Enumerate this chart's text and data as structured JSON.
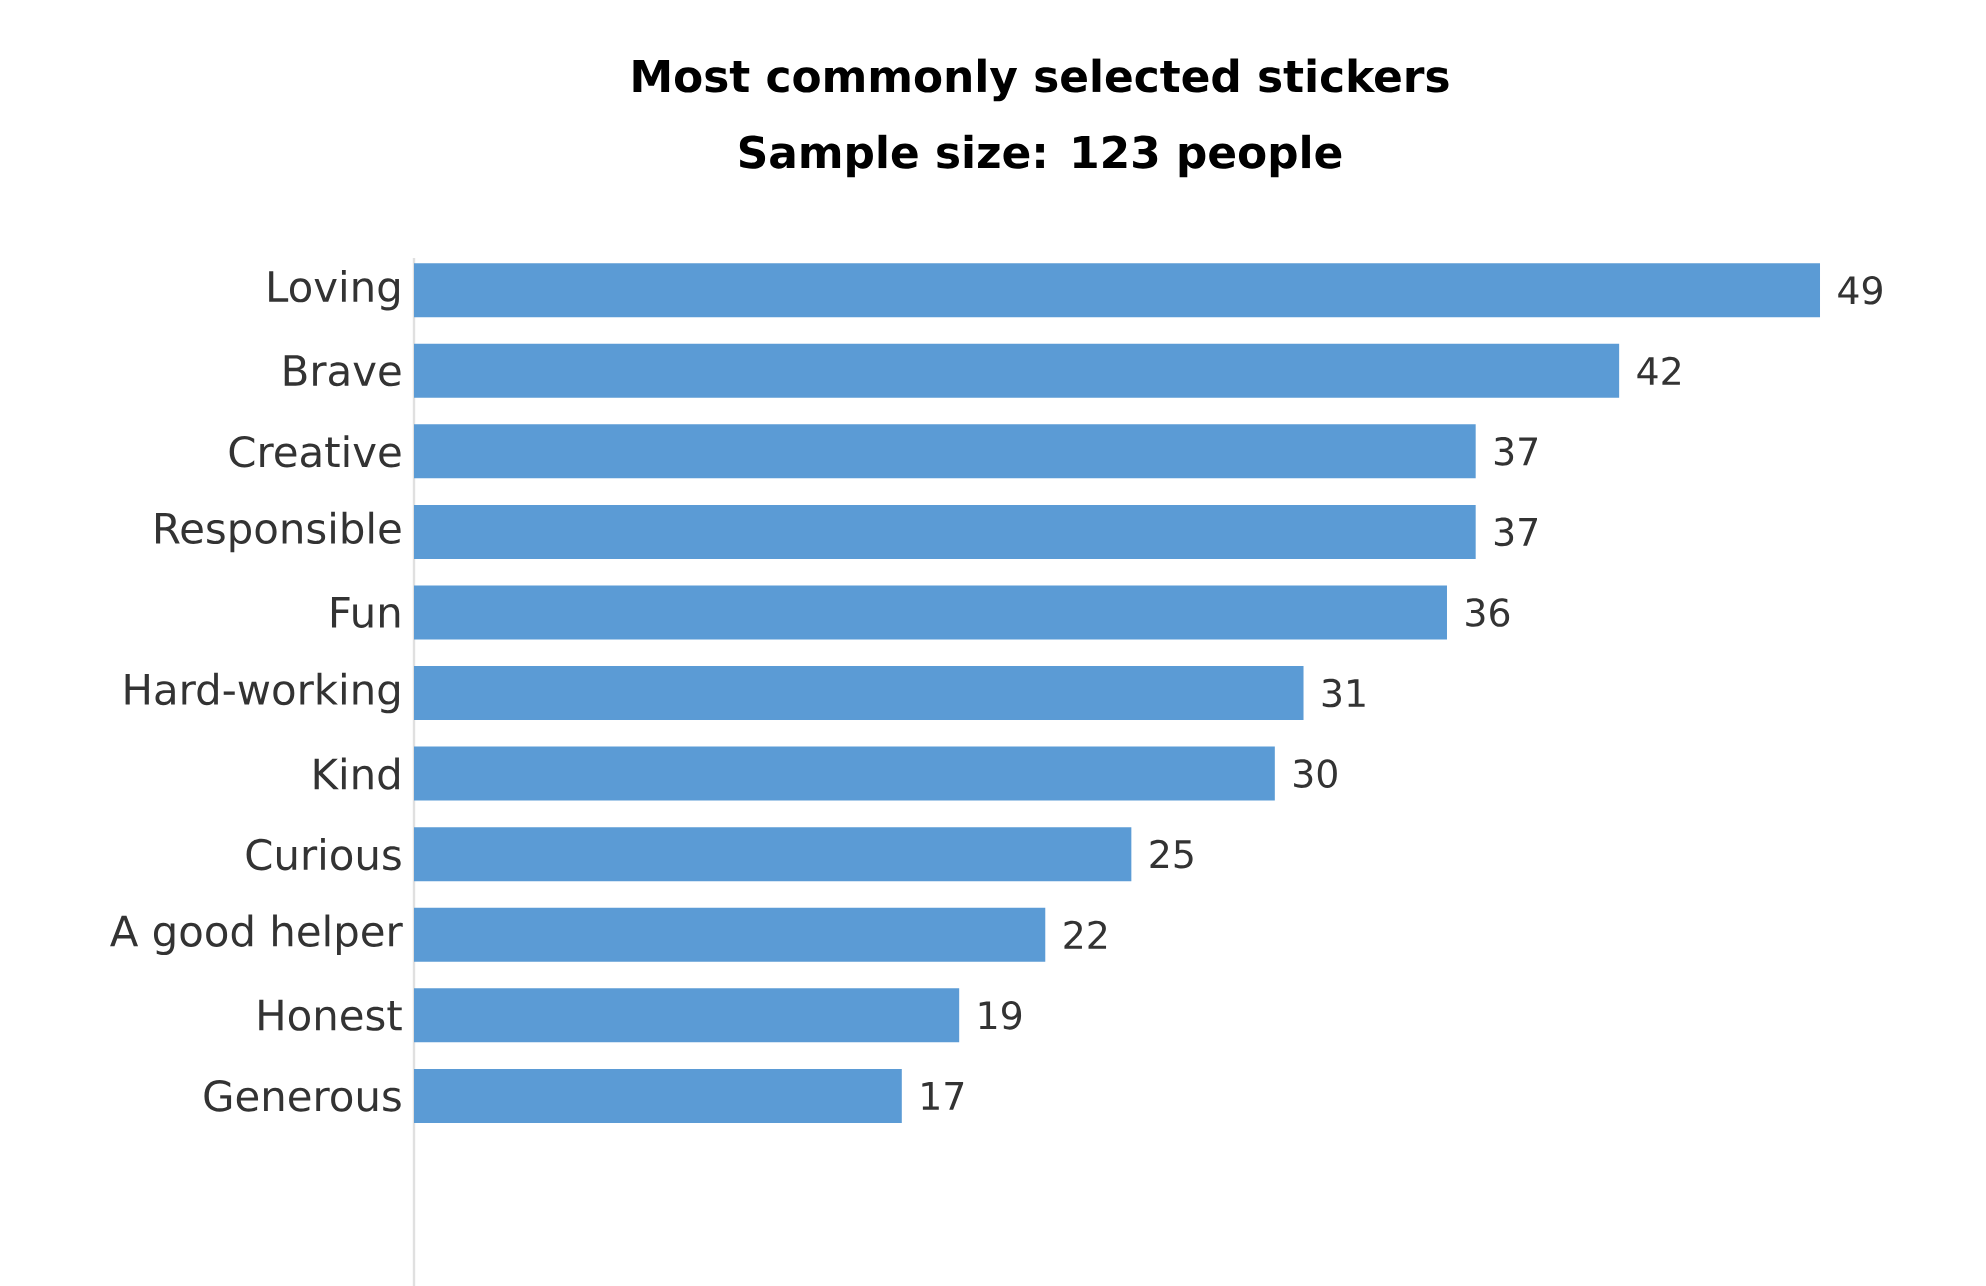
{
  "chart_data": {
    "type": "bar",
    "orientation": "horizontal",
    "title": "Most commonly selected stickers",
    "subtitle": "Sample size: 123 people",
    "categories": [
      "Loving",
      "Brave",
      "Creative",
      "Responsible",
      "Fun",
      "Hard-working",
      "Kind",
      "Curious",
      "A good helper",
      "Honest",
      "Generous"
    ],
    "values": [
      49,
      42,
      37,
      37,
      36,
      31,
      30,
      25,
      22,
      19,
      17
    ],
    "color": "#5b9bd5",
    "data_labels": true
  }
}
